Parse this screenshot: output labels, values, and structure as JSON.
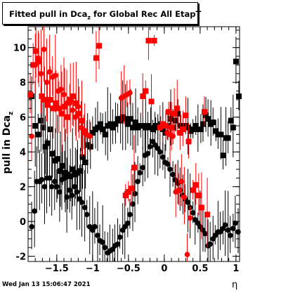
{
  "title": {
    "text": "Fitted pull in Dca",
    "sub": "z",
    "rest": " for Global Rec All EtapT"
  },
  "footer": "Wed Jan 13 15:06:47 2021",
  "chart_data": {
    "type": "scatter",
    "xlabel": "η",
    "ylabel": {
      "text": "pull in Dca",
      "sub": "z"
    },
    "xlim": [
      -1.9,
      1.05
    ],
    "ylim": [
      -2.3,
      11.2
    ],
    "xticks": [
      -1.5,
      -1,
      -0.5,
      0,
      0.5,
      1
    ],
    "xtick_labels": [
      "−1.5",
      "−1",
      "−0.5",
      "0",
      "0.5",
      "1"
    ],
    "yticks": [
      -2,
      0,
      2,
      4,
      6,
      8,
      10
    ],
    "colors": {
      "black": "#000000",
      "red": "#ff0000"
    },
    "series": [
      {
        "marker": "square",
        "color": "#000000",
        "x": [
          -1.85,
          -1.8,
          -1.76,
          -1.72,
          -1.69,
          -1.66,
          -1.63,
          -1.59,
          -1.56,
          -1.52,
          -1.49,
          -1.45,
          -1.42,
          -1.38,
          -1.35,
          -1.31,
          -1.28,
          -1.24,
          -1.21,
          -1.17,
          -1.14,
          -1.1,
          -1.07,
          -1.03,
          -1.0,
          -0.96,
          -0.93,
          -0.89,
          -0.86,
          -0.82,
          -0.79,
          -0.75,
          -0.72,
          -0.68,
          -0.65,
          -0.61,
          -0.58,
          -0.54,
          -0.51,
          -0.47,
          -0.44,
          -0.4,
          -0.37,
          -0.33,
          -0.3,
          -0.26,
          -0.23,
          -0.19,
          -0.16,
          -0.12,
          -0.09,
          -0.05,
          -0.02,
          0.02,
          0.05,
          0.09,
          0.12,
          0.16,
          0.19,
          0.23,
          0.26,
          0.3,
          0.33,
          0.37,
          0.4,
          0.44,
          0.47,
          0.51,
          0.54,
          0.58,
          0.61,
          0.65,
          0.68,
          0.72,
          0.75,
          0.79,
          0.82,
          0.86,
          0.89,
          0.93,
          0.96,
          1.0,
          1.04
        ],
        "y": [
          7.2,
          5.5,
          5.0,
          5.8,
          5.4,
          4.3,
          4.5,
          5.3,
          3.9,
          3.5,
          3.6,
          2.9,
          3.2,
          2.8,
          2.7,
          2.6,
          3.0,
          2.7,
          2.8,
          2.9,
          3.7,
          3.4,
          4.4,
          4.3,
          5.1,
          5.3,
          5.4,
          5.6,
          5.3,
          5.0,
          5.5,
          5.6,
          5.4,
          5.6,
          5.9,
          5.8,
          6.0,
          5.9,
          5.6,
          5.9,
          5.4,
          5.7,
          5.4,
          5.5,
          5.5,
          5.4,
          5.5,
          5.4,
          5.3,
          5.5,
          5.4,
          5.6,
          5.3,
          5.1,
          5.5,
          5.9,
          5.4,
          5.8,
          6.2,
          5.5,
          5.5,
          5.5,
          5.4,
          5.2,
          5.3,
          5.5,
          5.3,
          5.3,
          5.6,
          6.1,
          5.9,
          5.6,
          5.7,
          5.2,
          5.0,
          5.0,
          3.8,
          4.8,
          4.8,
          5.8,
          5.4,
          9.2,
          7.2
        ]
      },
      {
        "marker": "circle",
        "color": "#000000",
        "x": [
          -1.85,
          -1.81,
          -1.78,
          -1.74,
          -1.71,
          -1.67,
          -1.64,
          -1.6,
          -1.57,
          -1.53,
          -1.5,
          -1.46,
          -1.43,
          -1.39,
          -1.36,
          -1.32,
          -1.29,
          -1.25,
          -1.22,
          -1.18,
          -1.15,
          -1.11,
          -1.08,
          -1.04,
          -1.0,
          -0.97,
          -0.93,
          -0.9,
          -0.86,
          -0.83,
          -0.79,
          -0.76,
          -0.72,
          -0.69,
          -0.65,
          -0.62,
          -0.58,
          -0.55,
          -0.51,
          -0.48,
          -0.44,
          -0.41,
          -0.37,
          -0.34,
          -0.3,
          -0.27,
          -0.23,
          -0.2,
          -0.16,
          -0.13,
          -0.09,
          -0.06,
          -0.02,
          0.01,
          0.05,
          0.08,
          0.12,
          0.15,
          0.19,
          0.22,
          0.26,
          0.29,
          0.33,
          0.36,
          0.4,
          0.43,
          0.47,
          0.5,
          0.54,
          0.57,
          0.61,
          0.64,
          0.68,
          0.71,
          0.75,
          0.78,
          0.82,
          0.85,
          0.89,
          0.92,
          0.96,
          0.99,
          1.03
        ],
        "y": [
          -0.3,
          0.6,
          2.3,
          2.3,
          2.4,
          2.0,
          2.5,
          2.5,
          2.0,
          2.3,
          2.0,
          1.7,
          2.4,
          2.5,
          1.4,
          1.8,
          1.5,
          2.0,
          1.7,
          1.3,
          1.1,
          0.8,
          0.4,
          -0.3,
          -0.5,
          -0.3,
          -0.8,
          -1.1,
          -1.2,
          -1.5,
          -1.8,
          -1.7,
          -1.6,
          -1.4,
          -1.3,
          -0.9,
          -0.5,
          -0.3,
          -0.1,
          0.4,
          1.0,
          1.6,
          2.3,
          2.8,
          3.1,
          3.8,
          3.9,
          4.3,
          4.6,
          4.4,
          4.2,
          4.0,
          3.7,
          3.4,
          3.3,
          3.0,
          2.7,
          2.4,
          2.2,
          1.8,
          1.5,
          1.3,
          1.1,
          0.8,
          0.5,
          0.1,
          -0.1,
          -0.3,
          -0.5,
          -0.7,
          -1.4,
          -1.3,
          -1.0,
          -0.8,
          -0.6,
          -0.6,
          -0.4,
          -0.2,
          -0.5,
          -0.8,
          -0.4,
          -0.1,
          -0.6
        ]
      },
      {
        "marker": "square",
        "color": "#ff0000",
        "x": [
          -1.87,
          -1.83,
          -1.79,
          -1.75,
          -1.71,
          -1.67,
          -1.63,
          -1.59,
          -1.55,
          -1.51,
          -1.47,
          -1.43,
          -1.39,
          -1.35,
          -1.31,
          -1.27,
          -1.23,
          -1.19,
          -1.15,
          -1.11,
          -0.95,
          -0.91,
          -0.54,
          -0.5,
          -0.46,
          -0.42,
          -0.3,
          -0.26,
          -0.22,
          -0.18,
          -0.14,
          -0.06,
          -0.02,
          0.02,
          0.06,
          0.1,
          0.14,
          0.18,
          0.22,
          0.26,
          0.3,
          0.34,
          0.4,
          0.44,
          0.48,
          0.52,
          0.56,
          0.6
        ],
        "y": [
          7.3,
          9.0,
          9.8,
          9.2,
          7.2,
          7.0,
          6.7,
          7.0,
          6.5,
          6.8,
          6.5,
          6.2,
          6.6,
          6.0,
          7.0,
          7.2,
          6.8,
          6.2,
          5.8,
          5.2,
          9.4,
          10.1,
          1.5,
          1.7,
          1.9,
          3.1,
          7.2,
          7.5,
          10.4,
          6.9,
          10.4,
          5.4,
          5.6,
          5.5,
          6.3,
          5.4,
          6.2,
          6.5,
          5.1,
          5.3,
          6.1,
          4.6,
          1.8,
          2.1,
          1.5,
          0.8,
          6.3,
          0.4
        ]
      },
      {
        "marker": "circle",
        "color": "#ff0000",
        "x": [
          -1.85,
          -1.8,
          -1.76,
          -1.72,
          -1.68,
          -1.64,
          -1.6,
          -1.56,
          -1.52,
          -1.48,
          -1.44,
          -1.4,
          -1.36,
          -1.32,
          -1.28,
          -1.24,
          -1.2,
          -1.16,
          -1.12,
          -1.08,
          -1.04,
          -0.6,
          -0.56,
          -0.52,
          -0.48,
          0.04,
          0.08,
          0.12,
          0.16,
          0.2,
          0.24,
          0.28,
          0.32,
          0.36
        ],
        "y": [
          4.9,
          9.0,
          9.4,
          8.5,
          9.9,
          8.0,
          8.6,
          8.3,
          8.4,
          7.5,
          7.6,
          7.3,
          6.8,
          6.8,
          6.4,
          6.0,
          6.6,
          5.4,
          5.1,
          5.0,
          4.9,
          7.1,
          7.2,
          7.3,
          7.4,
          5.1,
          5.0,
          4.9,
          1.7,
          1.8,
          2.3,
          1.4,
          -1.9,
          0.2
        ]
      }
    ]
  }
}
